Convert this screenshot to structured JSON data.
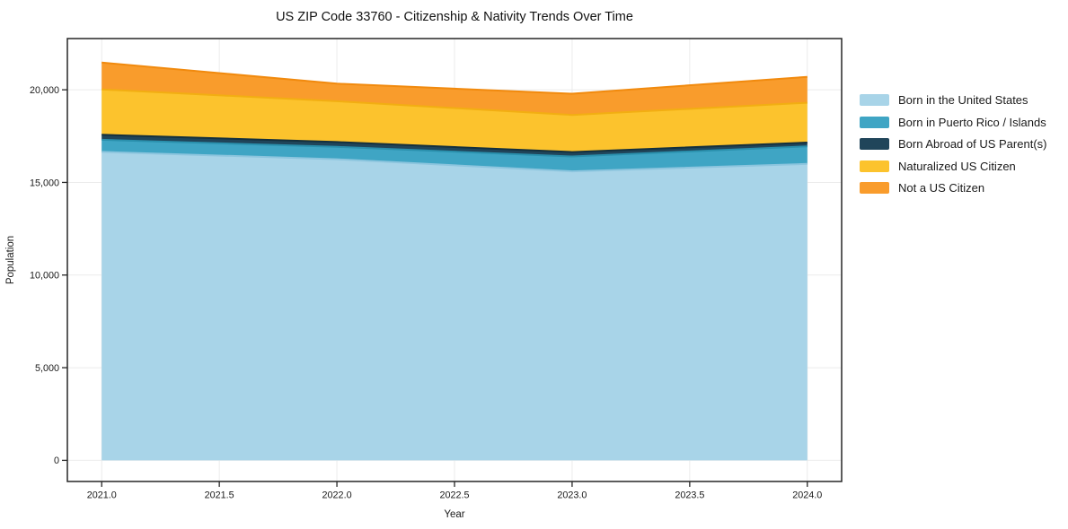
{
  "figure": {
    "background": "#ffffff"
  },
  "chart_data": {
    "type": "area",
    "stacked": true,
    "title": "US ZIP Code 33760 - Citizenship & Nativity Trends Over Time",
    "xlabel": "Year",
    "ylabel": "Population",
    "x": [
      2021,
      2022,
      2023,
      2024
    ],
    "series": [
      {
        "name": "Born in the United States",
        "color": "#a8d4e8",
        "line_color": "#8cc5de",
        "values": [
          16650,
          16250,
          15600,
          16000
        ]
      },
      {
        "name": "Born in Puerto Rico / Islands",
        "color": "#3fa5c4",
        "line_color": "#2a90ad",
        "values": [
          650,
          670,
          800,
          950
        ]
      },
      {
        "name": "Born Abroad of US Parent(s)",
        "color": "#20455a",
        "line_color": "#14303e",
        "values": [
          270,
          260,
          240,
          200
        ]
      },
      {
        "name": "Naturalized US Citizen",
        "color": "#fcc32d",
        "line_color": "#f2ae12",
        "values": [
          2450,
          2200,
          2000,
          2150
        ]
      },
      {
        "name": "Not a US Citizen",
        "color": "#f99c2c",
        "line_color": "#f18a0e",
        "values": [
          1450,
          950,
          1150,
          1400
        ]
      }
    ],
    "totals": [
      21470,
      20330,
      19790,
      20700
    ],
    "xlim": [
      2020.854,
      2024.146
    ],
    "ylim": [
      -1142,
      22765
    ],
    "xticks": {
      "values": [
        2021.0,
        2021.5,
        2022.0,
        2022.5,
        2023.0,
        2023.5,
        2024.0
      ],
      "labels": [
        "2021.0",
        "2021.5",
        "2022.0",
        "2022.5",
        "2023.0",
        "2023.5",
        "2024.0"
      ]
    },
    "yticks": {
      "values": [
        0,
        5000,
        10000,
        15000,
        20000
      ],
      "labels": [
        "0",
        "5,000",
        "10,000",
        "15,000",
        "20,000"
      ]
    },
    "grid": true,
    "grid_color": "#ebebeb",
    "frame_color": "#262626",
    "legend_position": "right"
  }
}
